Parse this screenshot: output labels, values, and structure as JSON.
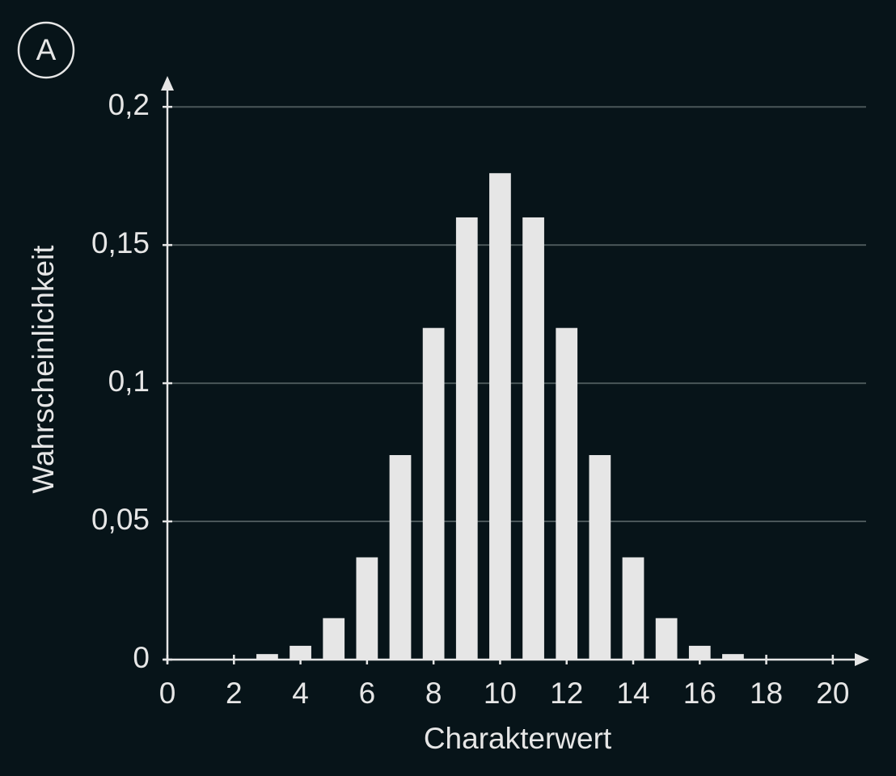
{
  "chart_data": {
    "type": "bar",
    "panel_label": "A",
    "x_label": "Charakterwert",
    "y_label": "Wahrscheinlichkeit",
    "x": [
      3,
      4,
      5,
      6,
      7,
      8,
      9,
      10,
      11,
      12,
      13,
      14,
      15,
      16,
      17
    ],
    "values": [
      0.002,
      0.005,
      0.015,
      0.037,
      0.074,
      0.12,
      0.16,
      0.176,
      0.16,
      0.12,
      0.074,
      0.037,
      0.015,
      0.005,
      0.002
    ],
    "color": "#e6e6e6",
    "xlim": [
      0,
      21
    ],
    "xticks": [
      0,
      2,
      4,
      6,
      8,
      10,
      12,
      14,
      16,
      18,
      20
    ],
    "ylim": [
      0,
      0.21
    ],
    "yticks": [
      0,
      {
        "value": 0.05,
        "label": "0,05"
      },
      {
        "value": 0.1,
        "label": "0,1"
      },
      {
        "value": 0.15,
        "label": "0,15"
      },
      {
        "value": 0.2,
        "label": "0,2"
      }
    ],
    "grid": true
  }
}
